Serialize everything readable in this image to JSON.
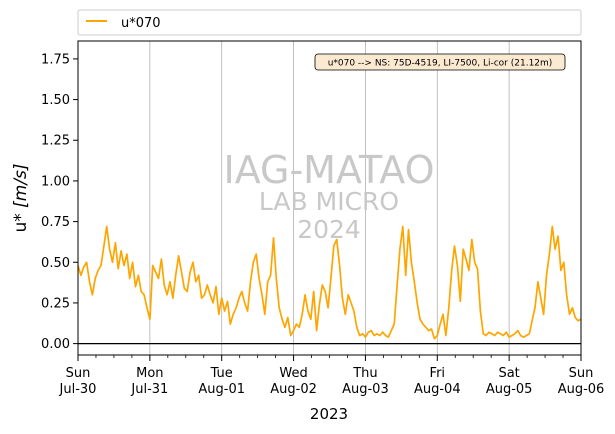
{
  "chart_data": {
    "type": "line",
    "xlabel": "2023",
    "ylabel": "u* [m/s]",
    "ylim": [
      -0.07,
      1.86
    ],
    "yticks": [
      0.0,
      0.25,
      0.5,
      0.75,
      1.0,
      1.25,
      1.5,
      1.75
    ],
    "ytick_labels": [
      "0.00",
      "0.25",
      "0.50",
      "0.75",
      "1.00",
      "1.25",
      "1.50",
      "1.75"
    ],
    "xlim": [
      0,
      7
    ],
    "x_units": "days since 2023-07-30 00:00",
    "xticks": [
      {
        "day": 0,
        "line1": "Sun",
        "line2": "Jul-30"
      },
      {
        "day": 1,
        "line1": "Mon",
        "line2": "Jul-31"
      },
      {
        "day": 2,
        "line1": "Tue",
        "line2": "Aug-01"
      },
      {
        "day": 3,
        "line1": "Wed",
        "line2": "Aug-02"
      },
      {
        "day": 4,
        "line1": "Thu",
        "line2": "Aug-03"
      },
      {
        "day": 5,
        "line1": "Fri",
        "line2": "Aug-04"
      },
      {
        "day": 6,
        "line1": "Sat",
        "line2": "Aug-05"
      },
      {
        "day": 7,
        "line1": "Sun",
        "line2": "Aug-06"
      }
    ],
    "minor_tick_hours": 6,
    "vertical_grid": true,
    "horizontal_zero_line": true,
    "legend_position": "top (above axes)",
    "annotation": "u*070 --> NS: 75D-4519, LI-7500, Li-cor (21.12m)",
    "annotation_position": "top-right",
    "watermark": [
      "IAG-MATAO",
      "LAB MICRO",
      "2024"
    ],
    "series": [
      {
        "name": "u*070",
        "color": "#FFA500",
        "x": [
          0.0,
          0.04,
          0.08,
          0.12,
          0.16,
          0.2,
          0.24,
          0.28,
          0.32,
          0.36,
          0.4,
          0.44,
          0.48,
          0.52,
          0.56,
          0.6,
          0.64,
          0.68,
          0.72,
          0.76,
          0.8,
          0.84,
          0.88,
          0.92,
          0.96,
          1.0,
          1.04,
          1.08,
          1.12,
          1.16,
          1.2,
          1.24,
          1.28,
          1.32,
          1.36,
          1.4,
          1.44,
          1.48,
          1.52,
          1.56,
          1.6,
          1.64,
          1.68,
          1.72,
          1.76,
          1.8,
          1.84,
          1.88,
          1.92,
          1.96,
          2.0,
          2.04,
          2.08,
          2.12,
          2.16,
          2.2,
          2.24,
          2.28,
          2.32,
          2.36,
          2.4,
          2.44,
          2.48,
          2.52,
          2.56,
          2.6,
          2.64,
          2.68,
          2.72,
          2.76,
          2.8,
          2.84,
          2.88,
          2.92,
          2.96,
          3.0,
          3.04,
          3.08,
          3.12,
          3.16,
          3.2,
          3.24,
          3.28,
          3.32,
          3.36,
          3.4,
          3.44,
          3.48,
          3.52,
          3.56,
          3.6,
          3.64,
          3.68,
          3.72,
          3.76,
          3.8,
          3.84,
          3.88,
          3.92,
          3.96,
          4.0,
          4.04,
          4.08,
          4.12,
          4.16,
          4.2,
          4.24,
          4.28,
          4.32,
          4.36,
          4.4,
          4.44,
          4.48,
          4.52,
          4.56,
          4.6,
          4.64,
          4.68,
          4.72,
          4.76,
          4.8,
          4.84,
          4.88,
          4.92,
          4.96,
          5.0,
          5.04,
          5.08,
          5.12,
          5.16,
          5.2,
          5.24,
          5.28,
          5.32,
          5.36,
          5.4,
          5.44,
          5.48,
          5.52,
          5.56,
          5.6,
          5.64,
          5.68,
          5.72,
          5.76,
          5.8,
          5.84,
          5.88,
          5.92,
          5.96,
          6.0,
          6.04,
          6.08,
          6.12,
          6.16,
          6.2,
          6.24,
          6.28,
          6.32,
          6.36,
          6.4,
          6.44,
          6.48,
          6.52,
          6.56,
          6.6,
          6.64,
          6.68,
          6.72,
          6.76,
          6.8,
          6.84,
          6.88,
          6.92,
          6.96,
          7.0
        ],
        "y": [
          0.48,
          0.42,
          0.47,
          0.5,
          0.38,
          0.3,
          0.4,
          0.45,
          0.48,
          0.6,
          0.72,
          0.58,
          0.5,
          0.62,
          0.46,
          0.57,
          0.48,
          0.55,
          0.4,
          0.5,
          0.35,
          0.42,
          0.32,
          0.3,
          0.22,
          0.15,
          0.48,
          0.44,
          0.4,
          0.52,
          0.36,
          0.3,
          0.38,
          0.28,
          0.42,
          0.54,
          0.44,
          0.34,
          0.32,
          0.44,
          0.5,
          0.38,
          0.42,
          0.28,
          0.3,
          0.36,
          0.3,
          0.25,
          0.35,
          0.18,
          0.28,
          0.2,
          0.26,
          0.12,
          0.18,
          0.22,
          0.28,
          0.32,
          0.25,
          0.2,
          0.38,
          0.5,
          0.55,
          0.4,
          0.3,
          0.18,
          0.38,
          0.42,
          0.65,
          0.4,
          0.22,
          0.15,
          0.1,
          0.16,
          0.05,
          0.08,
          0.12,
          0.1,
          0.18,
          0.3,
          0.2,
          0.15,
          0.32,
          0.08,
          0.24,
          0.36,
          0.32,
          0.22,
          0.4,
          0.6,
          0.64,
          0.48,
          0.28,
          0.18,
          0.3,
          0.25,
          0.2,
          0.1,
          0.05,
          0.06,
          0.04,
          0.07,
          0.08,
          0.05,
          0.06,
          0.05,
          0.07,
          0.05,
          0.04,
          0.08,
          0.12,
          0.35,
          0.58,
          0.72,
          0.42,
          0.7,
          0.5,
          0.38,
          0.25,
          0.15,
          0.12,
          0.1,
          0.08,
          0.09,
          0.03,
          0.05,
          0.12,
          0.18,
          0.05,
          0.22,
          0.45,
          0.6,
          0.48,
          0.26,
          0.58,
          0.52,
          0.45,
          0.64,
          0.5,
          0.46,
          0.2,
          0.06,
          0.05,
          0.07,
          0.06,
          0.05,
          0.07,
          0.06,
          0.05,
          0.07,
          0.04,
          0.05,
          0.06,
          0.08,
          0.05,
          0.04,
          0.05,
          0.06,
          0.14,
          0.22,
          0.38,
          0.28,
          0.18,
          0.42,
          0.55,
          0.72,
          0.58,
          0.66,
          0.45,
          0.5,
          0.3,
          0.18,
          0.22,
          0.16,
          0.14,
          0.15
        ]
      }
    ]
  }
}
